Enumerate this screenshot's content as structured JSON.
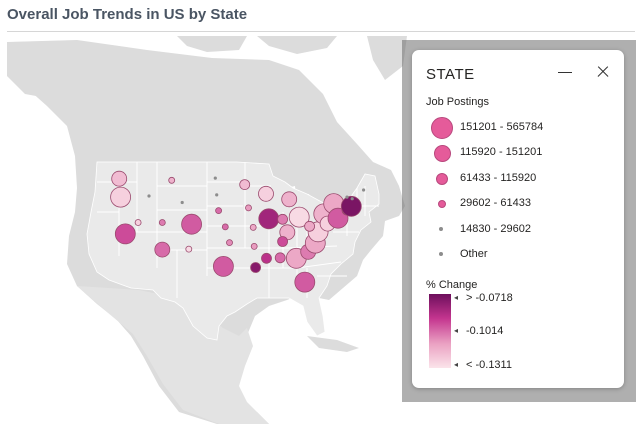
{
  "title": "Overall Job Trends in US by State",
  "legend": {
    "title": "STATE",
    "size_title": "Job Postings",
    "size_items": [
      {
        "label": "151201 - 565784",
        "dot_size": 20
      },
      {
        "label": "115920 - 151201",
        "dot_size": 15
      },
      {
        "label": "61433 - 115920",
        "dot_size": 10
      },
      {
        "label": "29602 - 61433",
        "dot_size": 6
      },
      {
        "label": "14830 - 29602",
        "dot_size": 3
      },
      {
        "label": "Other",
        "dot_size": 3
      }
    ],
    "color_title": "% Change",
    "color_labels": {
      "top": "> -0.0718",
      "mid": "-0.1014",
      "bottom": "< -0.1311"
    },
    "color_scale": [
      "#6d0f5c",
      "#c4358f",
      "#eaa1c2",
      "#fbe4ea"
    ]
  },
  "map_colors": {
    "ocean": "#ffffff",
    "land_us": "#eaeaea",
    "land_other": "#dcdcdc",
    "state_border": "#ffffff",
    "bubble_border": "#9a4a6e"
  },
  "bubbles": [
    {
      "state": "Washington",
      "lon": -120.8,
      "lat": 47.4,
      "size": 2,
      "change": 0.2
    },
    {
      "state": "Oregon",
      "lon": -120.5,
      "lat": 44.0,
      "size": 1,
      "change": 0.1
    },
    {
      "state": "California",
      "lon": -119.5,
      "lat": 37.2,
      "size": 1,
      "change": 0.6
    },
    {
      "state": "Nevada",
      "lon": -116.8,
      "lat": 39.3,
      "size": 4,
      "change": 0.1
    },
    {
      "state": "Idaho",
      "lon": -114.5,
      "lat": 44.2,
      "size": 5,
      "change": 0.5
    },
    {
      "state": "Montana",
      "lon": -109.7,
      "lat": 47.1,
      "size": 4,
      "change": 0.25
    },
    {
      "state": "Wyoming",
      "lon": -107.5,
      "lat": 43.0,
      "size": 5,
      "change": 0.5
    },
    {
      "state": "Utah",
      "lon": -111.7,
      "lat": 39.3,
      "size": 4,
      "change": 0.45
    },
    {
      "state": "Colorado",
      "lon": -105.5,
      "lat": 39.0,
      "size": 1,
      "change": 0.55
    },
    {
      "state": "Arizona",
      "lon": -111.7,
      "lat": 34.3,
      "size": 2,
      "change": 0.5
    },
    {
      "state": "New Mexico",
      "lon": -106.1,
      "lat": 34.4,
      "size": 4,
      "change": 0.05
    },
    {
      "state": "North Dakota",
      "lon": -100.5,
      "lat": 47.5,
      "size": 5,
      "change": 0.3
    },
    {
      "state": "South Dakota",
      "lon": -100.2,
      "lat": 44.4,
      "size": 5,
      "change": 0.3
    },
    {
      "state": "Nebraska",
      "lon": -99.8,
      "lat": 41.5,
      "size": 4,
      "change": 0.5
    },
    {
      "state": "Kansas",
      "lon": -98.4,
      "lat": 38.5,
      "size": 4,
      "change": 0.5
    },
    {
      "state": "Oklahoma",
      "lon": -97.5,
      "lat": 35.6,
      "size": 4,
      "change": 0.4
    },
    {
      "state": "Texas",
      "lon": -98.8,
      "lat": 31.2,
      "size": 1,
      "change": 0.55
    },
    {
      "state": "Minnesota",
      "lon": -94.3,
      "lat": 46.3,
      "size": 3,
      "change": 0.2
    },
    {
      "state": "Iowa",
      "lon": -93.5,
      "lat": 42.0,
      "size": 4,
      "change": 0.35
    },
    {
      "state": "Missouri",
      "lon": -92.5,
      "lat": 38.4,
      "size": 4,
      "change": 0.3
    },
    {
      "state": "Arkansas",
      "lon": -92.3,
      "lat": 34.9,
      "size": 4,
      "change": 0.35
    },
    {
      "state": "Louisiana",
      "lon": -92.0,
      "lat": 31.0,
      "size": 3,
      "change": 0.9
    },
    {
      "state": "Wisconsin",
      "lon": -89.8,
      "lat": 44.6,
      "size": 2,
      "change": 0.1
    },
    {
      "state": "Illinois",
      "lon": -89.2,
      "lat": 40.0,
      "size": 1,
      "change": 0.8
    },
    {
      "state": "Michigan",
      "lon": -84.9,
      "lat": 43.6,
      "size": 2,
      "change": 0.25
    },
    {
      "state": "Indiana",
      "lon": -86.3,
      "lat": 39.9,
      "size": 3,
      "change": 0.45
    },
    {
      "state": "Ohio",
      "lon": -82.8,
      "lat": 40.3,
      "size": 1,
      "change": 0.05
    },
    {
      "state": "Kentucky",
      "lon": -85.3,
      "lat": 37.5,
      "size": 2,
      "change": 0.25
    },
    {
      "state": "Tennessee",
      "lon": -86.3,
      "lat": 35.8,
      "size": 3,
      "change": 0.6
    },
    {
      "state": "Mississippi",
      "lon": -89.7,
      "lat": 32.7,
      "size": 3,
      "change": 0.7
    },
    {
      "state": "Alabama",
      "lon": -86.8,
      "lat": 32.8,
      "size": 3,
      "change": 0.5
    },
    {
      "state": "Georgia",
      "lon": -83.4,
      "lat": 32.7,
      "size": 1,
      "change": 0.3
    },
    {
      "state": "Florida",
      "lon": -81.6,
      "lat": 28.3,
      "size": 1,
      "change": 0.55
    },
    {
      "state": "South Carolina",
      "lon": -80.9,
      "lat": 33.9,
      "size": 2,
      "change": 0.45
    },
    {
      "state": "North Carolina",
      "lon": -79.4,
      "lat": 35.5,
      "size": 1,
      "change": 0.3
    },
    {
      "state": "Virginia",
      "lon": -78.8,
      "lat": 37.6,
      "size": 1,
      "change": 0.1
    },
    {
      "state": "West Virginia",
      "lon": -80.6,
      "lat": 38.6,
      "size": 3,
      "change": 0.3
    },
    {
      "state": "Pennsylvania",
      "lon": -77.6,
      "lat": 40.9,
      "size": 1,
      "change": 0.25
    },
    {
      "state": "New York",
      "lon": -75.5,
      "lat": 42.8,
      "size": 1,
      "change": 0.3
    },
    {
      "state": "Maryland",
      "lon": -76.8,
      "lat": 39.1,
      "size": 2,
      "change": 0.1
    },
    {
      "state": "Delaware",
      "lon": -75.5,
      "lat": 39.2,
      "size": 4,
      "change": 0.05
    },
    {
      "state": "New Jersey",
      "lon": -74.6,
      "lat": 40.1,
      "size": 1,
      "change": 0.55
    },
    {
      "state": "Connecticut",
      "lon": -72.7,
      "lat": 41.6,
      "size": 3,
      "change": 0.85
    },
    {
      "state": "Massachusetts",
      "lon": -71.8,
      "lat": 42.3,
      "size": 1,
      "change": 0.95
    },
    {
      "state": "Vermont",
      "lon": -72.7,
      "lat": 44.0,
      "size": 5,
      "change": 0.4
    },
    {
      "state": "New Hampshire",
      "lon": -71.6,
      "lat": 43.7,
      "size": 5,
      "change": 0.4
    },
    {
      "state": "Maine",
      "lon": -69.2,
      "lat": 45.3,
      "size": 5,
      "change": 0.4
    }
  ]
}
